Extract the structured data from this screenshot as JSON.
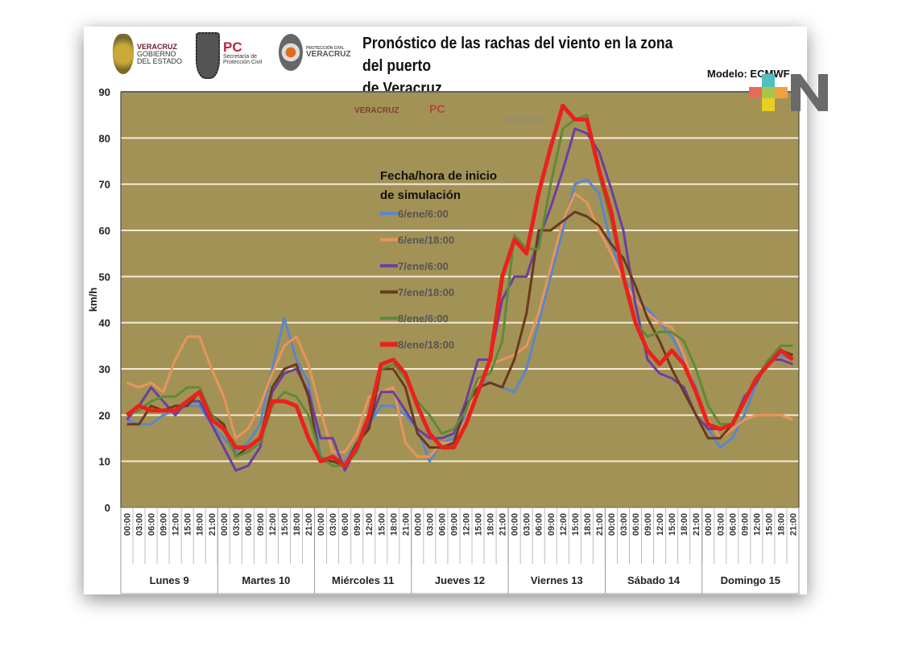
{
  "header": {
    "title_line1": "Pronóstico de las rachas del viento en la zona del puerto",
    "title_line2": "de Veracruz",
    "model": "Modelo: ECMWF",
    "logos": {
      "gobierno": [
        "VERACRUZ",
        "GOBIERNO",
        "DEL ESTADO"
      ],
      "pc": [
        "PC",
        "Secretaría de",
        "Protección Civil"
      ],
      "proteccion_civil": [
        "PROTECCIÓN CIVIL",
        "VERACRUZ"
      ]
    }
  },
  "chart_data": {
    "type": "line",
    "title": "Pronóstico de las rachas del viento en la zona del puerto de Veracruz",
    "ylabel": "km/h",
    "ylim": [
      0,
      90
    ],
    "yticks": [
      0,
      10,
      20,
      30,
      40,
      50,
      60,
      70,
      80,
      90
    ],
    "grid": true,
    "legend_title": [
      "Fecha/hora de inicio",
      "de simulación"
    ],
    "legend_position": "upper-left-center",
    "days": [
      "Lunes 9",
      "Martes 10",
      "Miércoles 11",
      "Jueves 12",
      "Viernes 13",
      "Sábado 14",
      "Domingo 15"
    ],
    "hours": [
      "00:00",
      "03:00",
      "06:00",
      "09:00",
      "12:00",
      "15:00",
      "18:00",
      "21:00"
    ],
    "background_color": "#a39256",
    "series": [
      {
        "name": "6/ene/6:00",
        "color": "#5b86c9",
        "width": 3,
        "values": [
          19,
          18,
          18,
          20,
          21,
          22,
          22,
          18,
          15,
          12,
          14,
          18,
          30,
          41,
          32,
          27,
          11,
          10,
          10,
          14,
          18,
          22,
          22,
          20,
          17,
          10,
          14,
          15,
          20,
          28,
          27,
          26,
          25,
          30,
          40,
          50,
          60,
          70,
          71,
          68,
          57,
          50,
          45,
          43,
          40,
          37,
          32,
          26,
          17,
          13,
          15,
          20,
          27,
          32,
          33,
          32
        ]
      },
      {
        "name": "6/ene/18:00",
        "color": "#e8955a",
        "width": 3,
        "values": [
          27,
          26,
          27,
          25,
          32,
          37,
          37,
          30,
          24,
          15,
          17,
          22,
          29,
          35,
          37,
          31,
          21,
          12,
          12,
          16,
          24,
          25,
          26,
          14,
          11,
          11,
          14,
          14,
          19,
          27,
          31,
          32,
          33,
          35,
          42,
          52,
          62,
          68,
          66,
          60,
          55,
          49,
          45,
          42,
          40,
          39,
          33,
          25,
          19,
          15,
          17,
          19,
          20,
          20,
          20,
          19
        ]
      },
      {
        "name": "7/ene/6:00",
        "color": "#6a3fa0",
        "width": 3,
        "values": [
          19,
          22,
          26,
          23,
          20,
          23,
          23,
          18,
          13,
          8,
          9,
          13,
          25,
          29,
          30,
          25,
          15,
          15,
          8,
          13,
          18,
          25,
          25,
          21,
          17,
          15,
          15,
          16,
          23,
          32,
          32,
          45,
          50,
          50,
          58,
          65,
          73,
          82,
          81,
          77,
          69,
          60,
          44,
          32,
          29,
          28,
          26,
          20,
          17,
          17,
          18,
          24,
          27,
          32,
          32,
          31
        ]
      },
      {
        "name": "7/ene/18:00",
        "color": "#6b3a1c",
        "width": 3,
        "values": [
          18,
          18,
          22,
          21,
          22,
          22,
          25,
          20,
          18,
          11,
          13,
          15,
          26,
          30,
          31,
          24,
          10,
          10,
          9,
          14,
          17,
          30,
          30,
          26,
          16,
          13,
          13,
          14,
          22,
          26,
          27,
          26,
          32,
          42,
          60,
          60,
          62,
          64,
          63,
          61,
          57,
          54,
          48,
          41,
          36,
          30,
          25,
          20,
          15,
          15,
          18,
          23,
          28,
          32,
          34,
          33
        ]
      },
      {
        "name": "8/ene/6:00",
        "color": "#5e8a3a",
        "width": 3,
        "values": [
          20,
          21,
          23,
          24,
          24,
          26,
          26,
          20,
          17,
          11,
          12,
          14,
          22,
          25,
          24,
          20,
          11,
          9,
          9,
          12,
          20,
          30,
          31,
          28,
          23,
          20,
          16,
          17,
          21,
          28,
          29,
          36,
          59,
          56,
          56,
          70,
          82,
          84,
          85,
          72,
          62,
          50,
          40,
          37,
          38,
          38,
          36,
          30,
          22,
          18,
          18,
          23,
          28,
          32,
          35,
          35
        ]
      },
      {
        "name": "8/ene/18:00",
        "color": "#e8221c",
        "width": 5,
        "values": [
          20,
          22,
          21,
          21,
          21,
          23,
          25,
          19,
          17,
          13,
          13,
          15,
          23,
          23,
          22,
          15,
          10,
          11,
          9,
          13,
          20,
          31,
          32,
          29,
          22,
          16,
          13,
          13,
          18,
          25,
          32,
          50,
          58,
          55,
          68,
          78,
          87,
          84,
          84,
          73,
          64,
          50,
          40,
          34,
          31,
          34,
          31,
          25,
          18,
          17,
          18,
          23,
          28,
          31,
          34,
          32
        ]
      }
    ]
  }
}
